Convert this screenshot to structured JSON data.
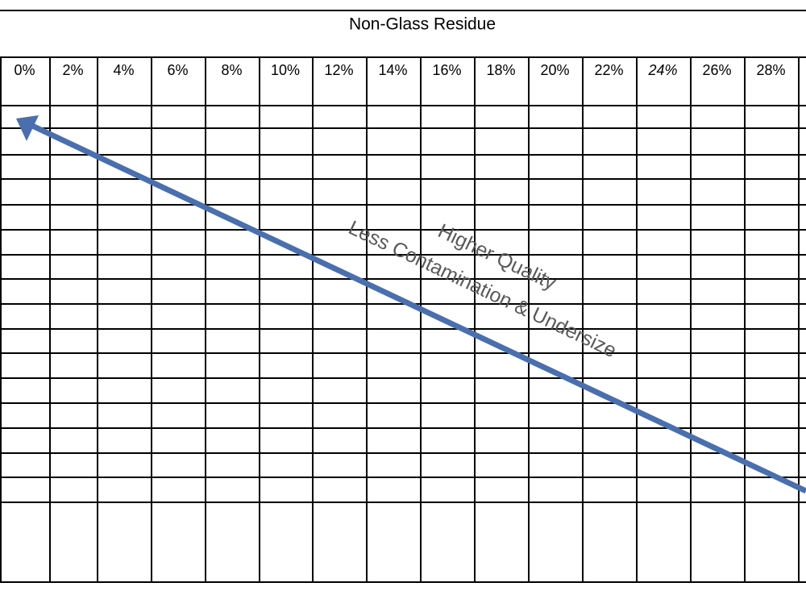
{
  "header": {
    "title": "Non-Glass Residue"
  },
  "columns": [
    "0%",
    "2%",
    "4%",
    "6%",
    "8%",
    "10%",
    "12%",
    "14%",
    "16%",
    "18%",
    "20%",
    "22%",
    "24%",
    "26%",
    "28%"
  ],
  "annotations": [
    "Higher Quality",
    "Less Contamination & Undersize"
  ]
}
